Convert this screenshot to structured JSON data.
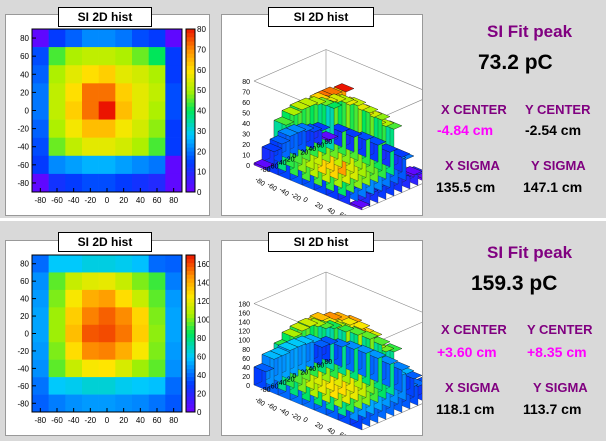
{
  "row1": {
    "heatmap_title": "SI 2D hist",
    "surface_title": "SI 2D hist",
    "fit_peak_label": "SI Fit peak",
    "fit_peak_value": "73.2 pC",
    "x_center_label": "X CENTER",
    "y_center_label": "Y CENTER",
    "x_center_value": "-4.84 cm",
    "y_center_value": "-2.54 cm",
    "x_sigma_label": "X SIGMA",
    "y_sigma_label": "Y SIGMA",
    "x_sigma_value": "135.5 cm",
    "y_sigma_value": "147.1 cm"
  },
  "row2": {
    "heatmap_title": "SI 2D hist",
    "surface_title": "SI 2D hist",
    "fit_peak_label": "SI Fit peak",
    "fit_peak_value": "159.3 pC",
    "x_center_label": "X CENTER",
    "y_center_label": "Y CENTER",
    "x_center_value": "+3.60 cm",
    "y_center_value": "+8.35 cm",
    "x_sigma_label": "X SIGMA",
    "y_sigma_label": "Y SIGMA",
    "x_sigma_value": "118.1 cm",
    "y_sigma_value": "113.7 cm"
  },
  "colors": {
    "label_purple": "#800080",
    "highlight_magenta": "#ff00ff",
    "panel_bg": "#d9d9d9"
  },
  "chart_data": [
    {
      "type": "heatmap",
      "title": "SI 2D hist",
      "x": [
        -80,
        -60,
        -40,
        -20,
        0,
        20,
        40,
        60,
        80
      ],
      "y": [
        80,
        60,
        40,
        20,
        0,
        -20,
        -40,
        -60,
        -80
      ],
      "z": [
        [
          2,
          14,
          18,
          22,
          22,
          20,
          16,
          14,
          2
        ],
        [
          16,
          44,
          50,
          52,
          52,
          50,
          46,
          40,
          14
        ],
        [
          18,
          50,
          56,
          60,
          62,
          56,
          54,
          50,
          14
        ],
        [
          20,
          52,
          60,
          72,
          72,
          62,
          56,
          52,
          16
        ],
        [
          20,
          52,
          62,
          72,
          80,
          64,
          56,
          50,
          16
        ],
        [
          18,
          50,
          58,
          64,
          64,
          58,
          54,
          48,
          14
        ],
        [
          16,
          46,
          52,
          56,
          56,
          54,
          50,
          44,
          14
        ],
        [
          14,
          22,
          24,
          26,
          26,
          24,
          22,
          20,
          2
        ],
        [
          2,
          12,
          14,
          16,
          16,
          14,
          12,
          10,
          2
        ]
      ],
      "zlim": [
        0,
        80
      ],
      "colorbar_ticks": [
        0,
        10,
        20,
        30,
        40,
        50,
        60,
        70,
        80
      ],
      "x_ticks": [
        -80,
        -60,
        -40,
        -20,
        0,
        20,
        40,
        60,
        80
      ],
      "y_ticks": [
        80,
        60,
        40,
        20,
        0,
        -20,
        -40,
        -60,
        -80
      ]
    },
    {
      "type": "surface",
      "title": "SI 2D hist",
      "z_ticks": [
        0,
        10,
        20,
        30,
        40,
        50,
        60,
        70,
        80
      ],
      "zlim": [
        0,
        80
      ]
    },
    {
      "type": "heatmap",
      "title": "SI 2D hist",
      "x": [
        -80,
        -60,
        -40,
        -20,
        0,
        20,
        40,
        60,
        80
      ],
      "y": [
        80,
        60,
        40,
        20,
        0,
        -20,
        -40,
        -60,
        -80
      ],
      "z": [
        [
          40,
          60,
          60,
          64,
          64,
          62,
          58,
          40,
          38
        ],
        [
          48,
          96,
          112,
          118,
          120,
          112,
          100,
          92,
          44
        ],
        [
          50,
          100,
          124,
          140,
          144,
          128,
          112,
          96,
          50
        ],
        [
          52,
          104,
          132,
          150,
          156,
          148,
          130,
          100,
          52
        ],
        [
          52,
          104,
          136,
          158,
          160,
          152,
          132,
          102,
          52
        ],
        [
          50,
          100,
          128,
          148,
          150,
          140,
          124,
          100,
          50
        ],
        [
          48,
          96,
          112,
          124,
          126,
          116,
          104,
          96,
          48
        ],
        [
          42,
          60,
          62,
          66,
          66,
          62,
          60,
          58,
          40
        ],
        [
          38,
          44,
          48,
          50,
          50,
          48,
          46,
          42,
          36
        ]
      ],
      "zlim": [
        0,
        170
      ],
      "colorbar_ticks": [
        0,
        20,
        40,
        60,
        80,
        100,
        120,
        140,
        160
      ],
      "x_ticks": [
        -80,
        -60,
        -40,
        -20,
        0,
        20,
        40,
        60,
        80
      ],
      "y_ticks": [
        80,
        60,
        40,
        20,
        0,
        -20,
        -40,
        -60,
        -80
      ]
    },
    {
      "type": "surface",
      "title": "SI 2D hist",
      "z_ticks": [
        0,
        20,
        40,
        60,
        80,
        100,
        120,
        140,
        160,
        180
      ],
      "zlim": [
        0,
        180
      ]
    }
  ]
}
